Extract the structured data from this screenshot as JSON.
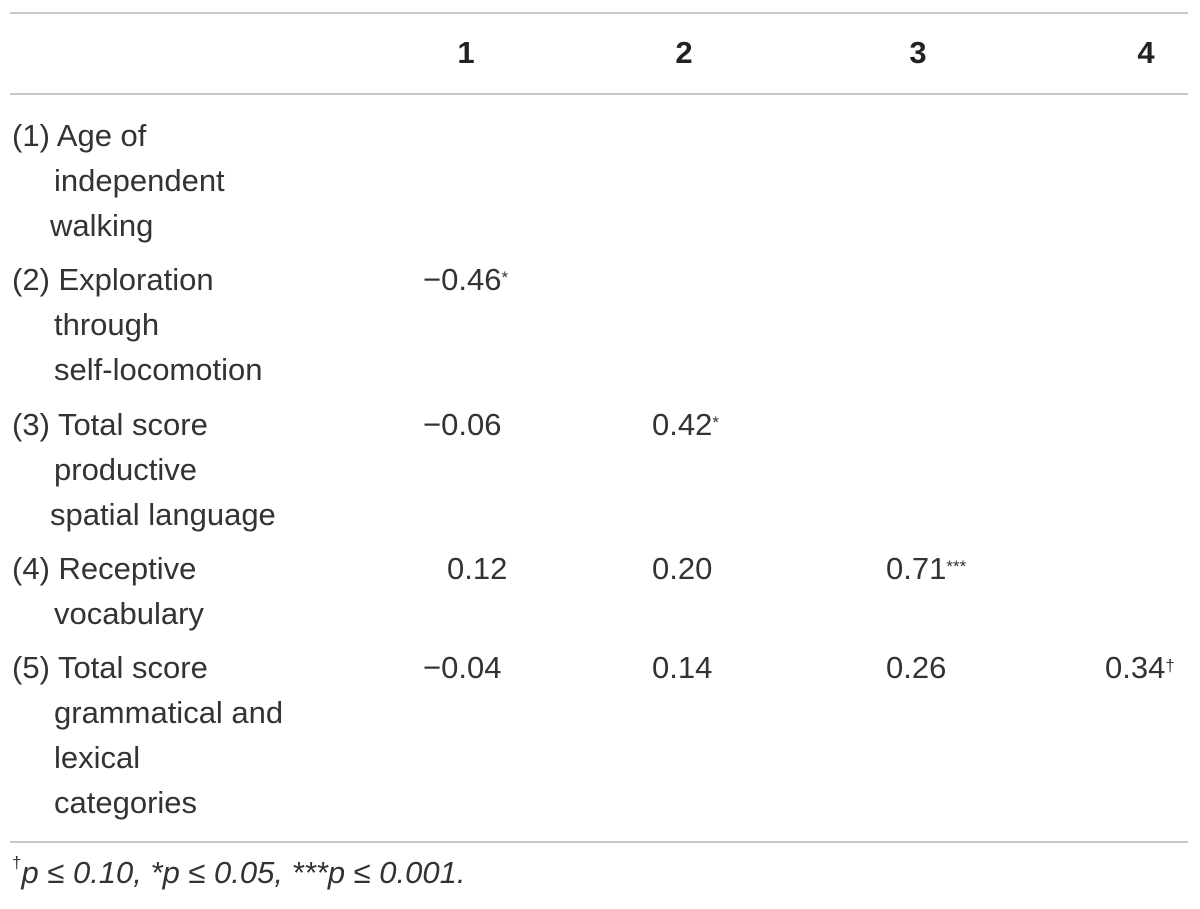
{
  "table": {
    "columns": [
      "1",
      "2",
      "3",
      "4"
    ],
    "rows": [
      {
        "label_lines": [
          "(1) Age of",
          "independent",
          "walking"
        ],
        "values": [
          "",
          "",
          "",
          ""
        ],
        "marks": [
          "",
          "",
          "",
          ""
        ]
      },
      {
        "label_lines": [
          "(2) Exploration",
          "through",
          "self-locomotion"
        ],
        "values": [
          "−0.46",
          "",
          "",
          ""
        ],
        "marks": [
          "*",
          "",
          "",
          ""
        ]
      },
      {
        "label_lines": [
          "(3) Total score",
          "productive",
          "spatial language"
        ],
        "values": [
          "−0.06",
          "0.42",
          "",
          ""
        ],
        "marks": [
          "",
          "*",
          "",
          ""
        ]
      },
      {
        "label_lines": [
          "(4) Receptive",
          "vocabulary"
        ],
        "values": [
          "0.12",
          "0.20",
          "0.71",
          ""
        ],
        "marks": [
          "",
          "",
          "***",
          ""
        ]
      },
      {
        "label_lines": [
          "(5) Total score",
          "grammatical and",
          "lexical",
          "categories"
        ],
        "values": [
          "−0.04",
          "0.14",
          "0.26",
          "0.34"
        ],
        "marks": [
          "",
          "",
          "",
          "†"
        ]
      }
    ]
  },
  "footnote": {
    "parts": [
      {
        "sup": "†",
        "text": "p ≤ 0.10, "
      },
      {
        "sup": "",
        "text": "*p ≤ 0.05, "
      },
      {
        "sup": "",
        "text": "***p ≤ 0.001."
      }
    ]
  }
}
